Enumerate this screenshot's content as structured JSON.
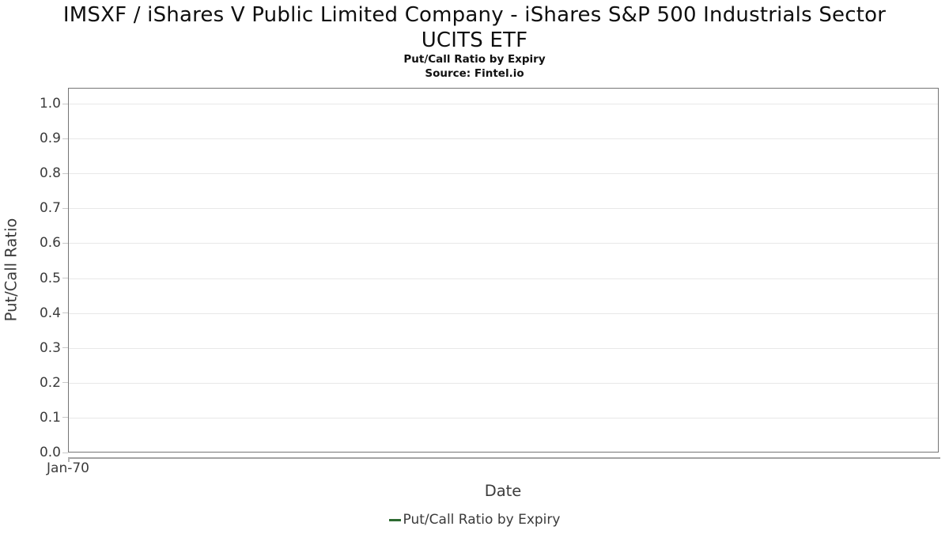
{
  "title": {
    "line1": "IMSXF / iShares V Public Limited Company - iShares S&P 500 Industrials Sector",
    "line2": "UCITS ETF"
  },
  "subtitle": "Put/Call Ratio by Expiry",
  "source": "Source: Fintel.io",
  "legend": {
    "position": "bottom",
    "entries": [
      {
        "label": "Put/Call Ratio by Expiry",
        "color": "#2d6a31"
      }
    ]
  },
  "colors": {
    "series_green": "#2d6a31",
    "gridline": "#e8e8e8",
    "plot_border": "#757575",
    "tick_text": "#3c3c3c",
    "title_text": "#0f0f0f"
  },
  "chart_data": {
    "type": "line",
    "title": "IMSXF / iShares V Public Limited Company - iShares S&P 500 Industrials Sector UCITS ETF",
    "subtitle": "Put/Call Ratio by Expiry",
    "source": "Source: Fintel.io",
    "xlabel": "Date",
    "ylabel": "Put/Call Ratio",
    "x_ticks": [
      "Jan-70"
    ],
    "y_ticks": [
      1.0,
      0.9,
      0.8,
      0.7,
      0.6,
      0.5,
      0.4,
      0.3,
      0.2,
      0.1,
      0.0
    ],
    "y_tick_labels": [
      "1.0",
      "0.9",
      "0.8",
      "0.7",
      "0.6",
      "0.5",
      "0.4",
      "0.3",
      "0.2",
      "0.1",
      "0.0"
    ],
    "ylim": [
      0.0,
      1.045
    ],
    "grid": true,
    "legend_position": "bottom",
    "series": [
      {
        "name": "Put/Call Ratio by Expiry",
        "color": "#2d6a31",
        "x": [],
        "values": []
      }
    ]
  }
}
